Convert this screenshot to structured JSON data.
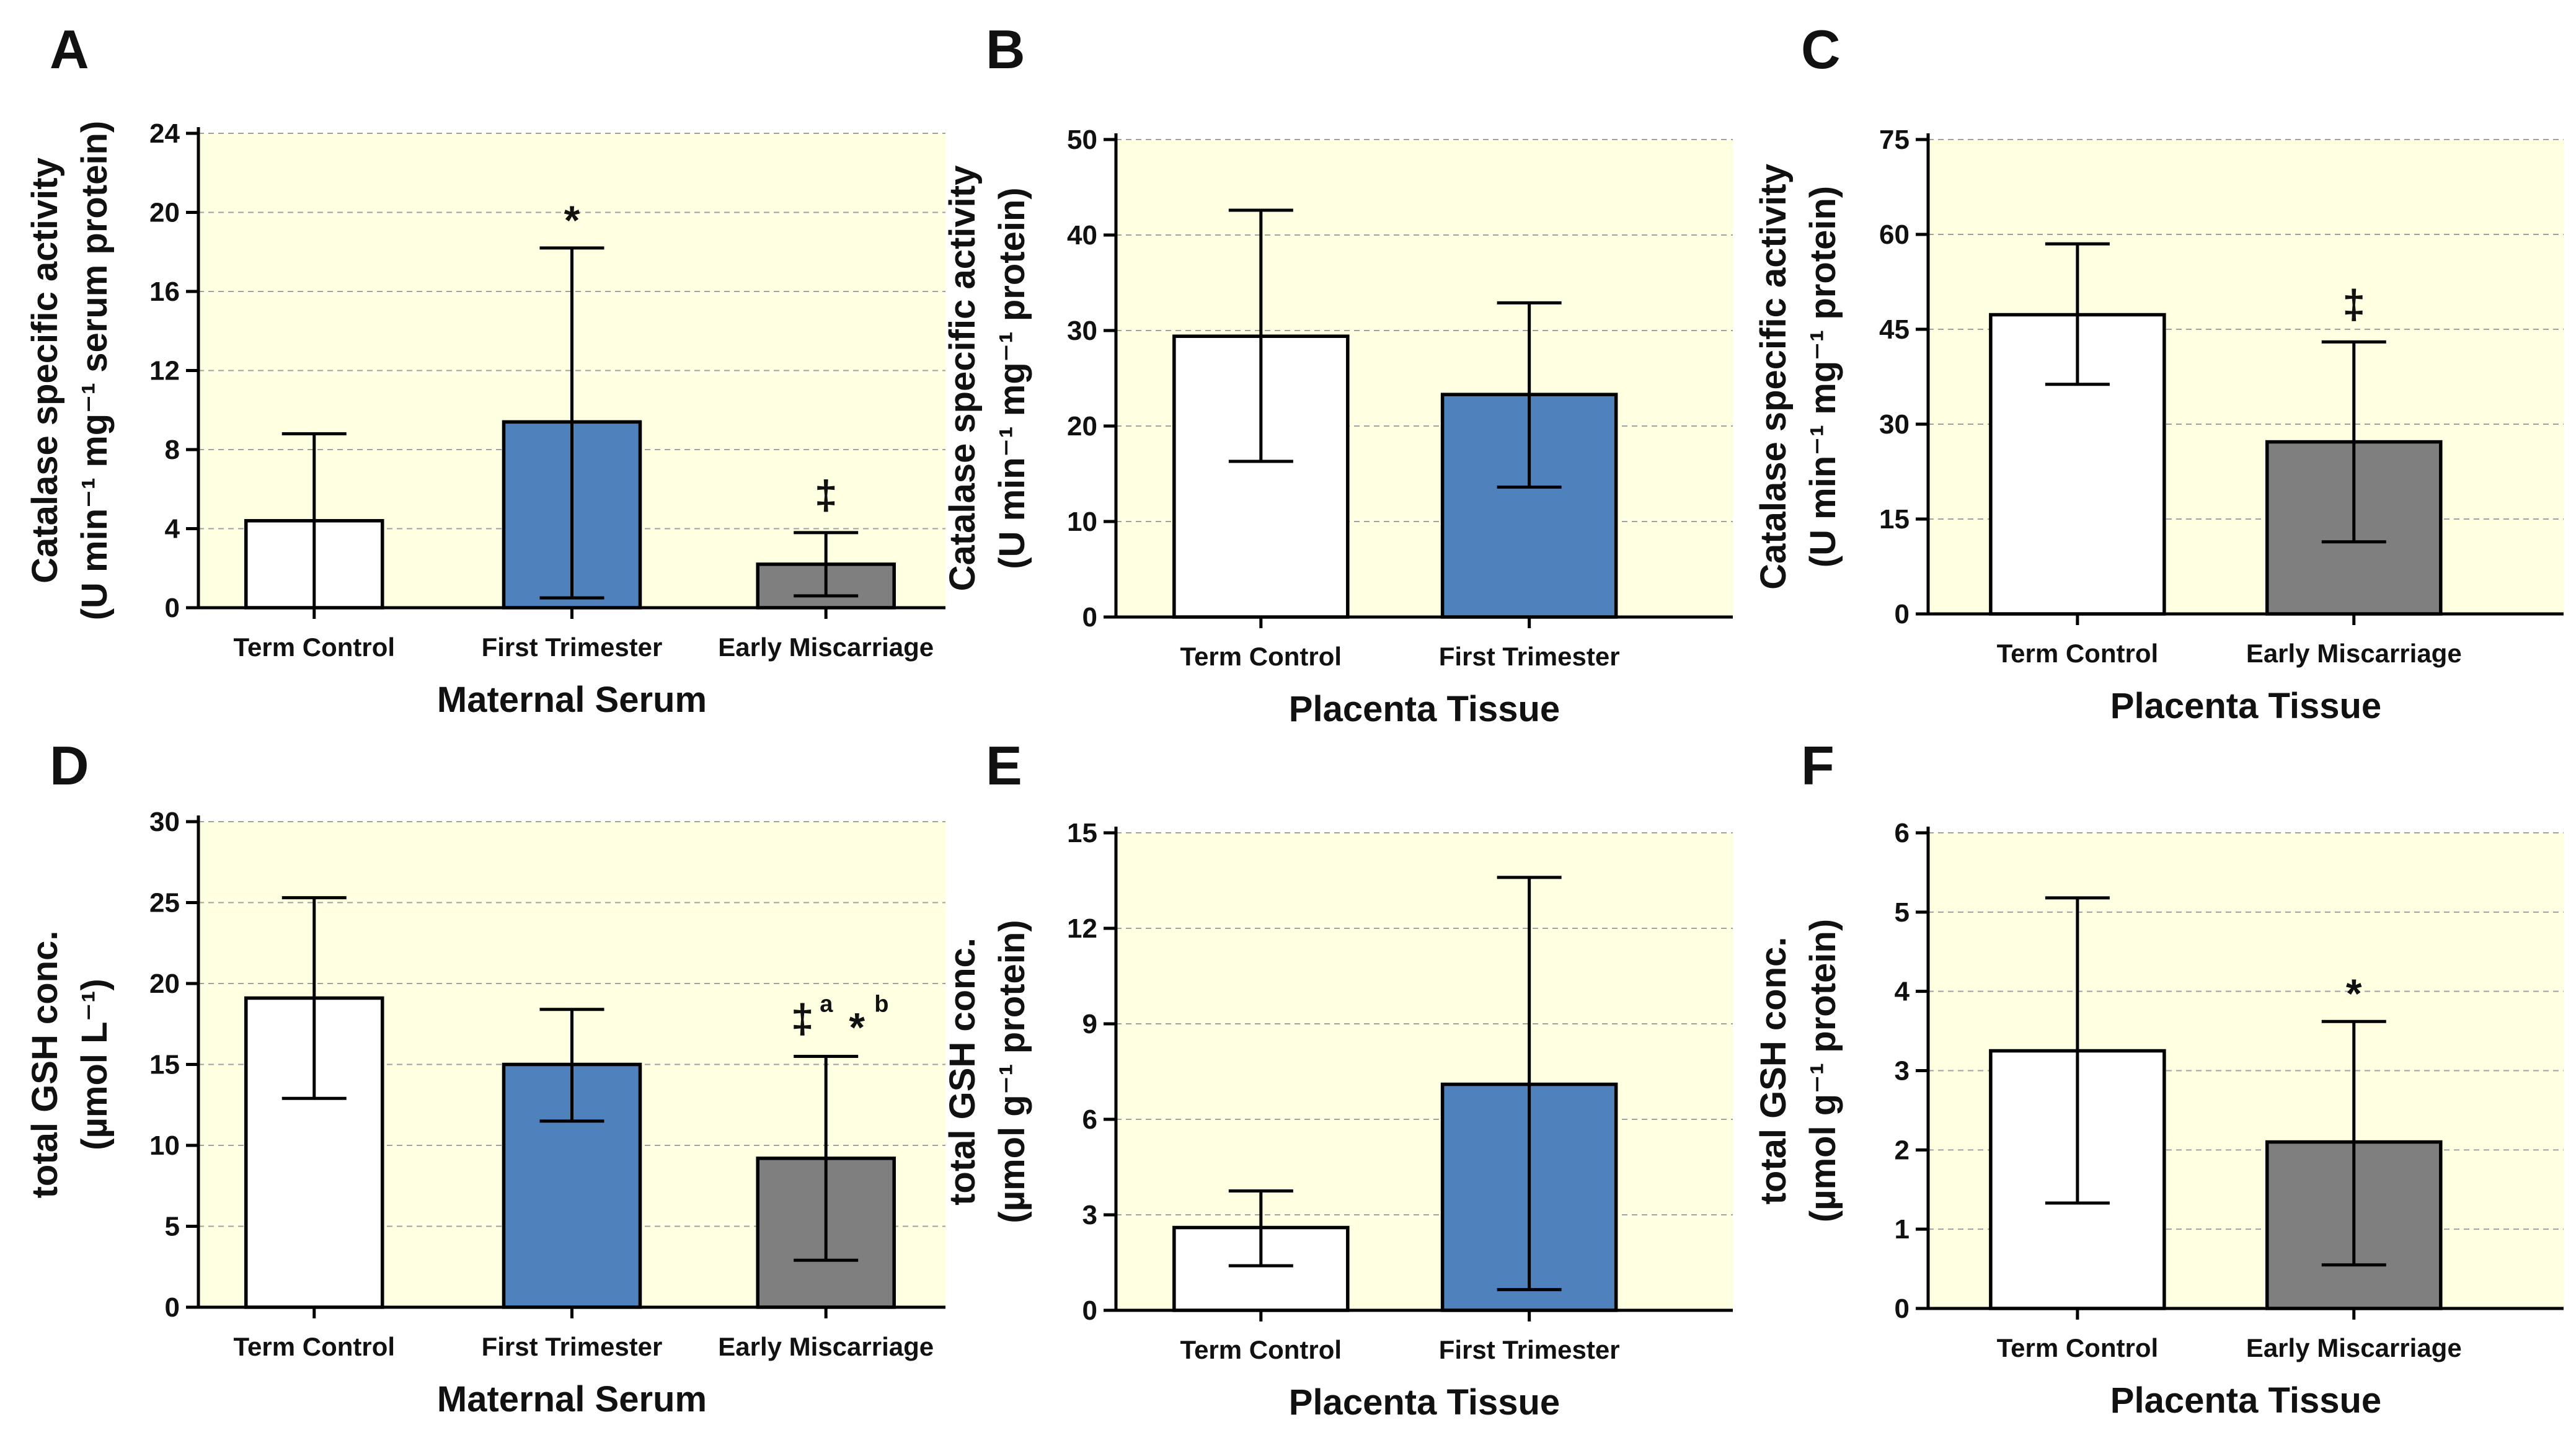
{
  "colors": {
    "plot_background": "#ffffe1",
    "term_control": "#ffffff",
    "first_trimester": "#4f81bd",
    "early_miscarriage": "#7f7f7f"
  },
  "chart_data": [
    {
      "panel": "A",
      "type": "bar",
      "categories": [
        "Term Control",
        "First Trimester",
        "Early Miscarriage"
      ],
      "values": [
        4.4,
        9.4,
        2.2
      ],
      "err_low": [
        0.0,
        0.5,
        0.6
      ],
      "err_high": [
        8.8,
        18.2,
        3.8
      ],
      "bar_colors": [
        "#ffffff",
        "#4f81bd",
        "#7f7f7f"
      ],
      "annotations": [
        {
          "category": "First Trimester",
          "symbol": "*"
        },
        {
          "category": "Early Miscarriage",
          "symbol": "‡"
        }
      ],
      "xlabel": "Maternal Serum",
      "ylabel_lines": [
        "Catalase specific activity",
        "(U min⁻¹ mg⁻¹ serum protein)"
      ],
      "ylim": [
        0,
        24
      ],
      "yticks": [
        0,
        4,
        8,
        12,
        16,
        20,
        24
      ],
      "grid": true
    },
    {
      "panel": "B",
      "type": "bar",
      "categories": [
        "Term Control",
        "First Trimester"
      ],
      "values": [
        29.4,
        23.3
      ],
      "err_low": [
        16.3,
        13.6
      ],
      "err_high": [
        42.6,
        32.9
      ],
      "bar_colors": [
        "#ffffff",
        "#4f81bd"
      ],
      "annotations": [],
      "xlabel": "Placenta Tissue",
      "ylabel_lines": [
        "Catalase specific activity",
        "(U min⁻¹ mg⁻¹ protein)"
      ],
      "ylim": [
        0,
        50
      ],
      "yticks": [
        0,
        10,
        20,
        30,
        40,
        50
      ],
      "grid": true
    },
    {
      "panel": "C",
      "type": "bar",
      "categories": [
        "Term Control",
        "Early Miscarriage"
      ],
      "values": [
        47.3,
        27.2
      ],
      "err_low": [
        36.3,
        11.4
      ],
      "err_high": [
        58.5,
        43.0
      ],
      "bar_colors": [
        "#ffffff",
        "#7f7f7f"
      ],
      "annotations": [
        {
          "category": "Early Miscarriage",
          "symbol": "‡"
        }
      ],
      "xlabel": "Placenta Tissue",
      "ylabel_lines": [
        "Catalase specific activity",
        "(U min⁻¹ mg⁻¹ protein)"
      ],
      "ylim": [
        0,
        75
      ],
      "yticks": [
        0,
        15,
        30,
        45,
        60,
        75
      ],
      "grid": true
    },
    {
      "panel": "D",
      "type": "bar",
      "categories": [
        "Term Control",
        "First Trimester",
        "Early Miscarriage"
      ],
      "values": [
        19.1,
        15.0,
        9.2
      ],
      "err_low": [
        12.9,
        11.5,
        2.9
      ],
      "err_high": [
        25.3,
        18.4,
        15.5
      ],
      "bar_colors": [
        "#ffffff",
        "#4f81bd",
        "#7f7f7f"
      ],
      "annotations": [
        {
          "category": "Early Miscarriage",
          "symbol": "‡",
          "superscript": "a",
          "symbol2": "*",
          "superscript2": "b"
        }
      ],
      "xlabel": "Maternal Serum",
      "ylabel_lines": [
        "total GSH conc.",
        "(µmol L⁻¹)"
      ],
      "ylim": [
        0,
        30
      ],
      "yticks": [
        0,
        5,
        10,
        15,
        20,
        25,
        30
      ],
      "grid": true
    },
    {
      "panel": "E",
      "type": "bar",
      "categories": [
        "Term Control",
        "First Trimester"
      ],
      "values": [
        2.6,
        7.1
      ],
      "err_low": [
        1.4,
        0.65
      ],
      "err_high": [
        3.75,
        13.6
      ],
      "bar_colors": [
        "#ffffff",
        "#4f81bd"
      ],
      "annotations": [],
      "xlabel": "Placenta Tissue",
      "ylabel_lines": [
        "total GSH conc.",
        "(µmol g⁻¹ protein)"
      ],
      "ylim": [
        0,
        15
      ],
      "yticks": [
        0,
        3,
        6,
        9,
        12,
        15
      ],
      "grid": true
    },
    {
      "panel": "F",
      "type": "bar",
      "categories": [
        "Term Control",
        "Early Miscarriage"
      ],
      "values": [
        3.25,
        2.1
      ],
      "err_low": [
        1.33,
        0.55
      ],
      "err_high": [
        5.18,
        3.62
      ],
      "bar_colors": [
        "#ffffff",
        "#7f7f7f"
      ],
      "annotations": [
        {
          "category": "Early Miscarriage",
          "symbol": "*"
        }
      ],
      "xlabel": "Placenta Tissue",
      "ylabel_lines": [
        "total GSH conc.",
        "(µmol g⁻¹ protein)"
      ],
      "ylim": [
        0,
        6
      ],
      "yticks": [
        0,
        1,
        2,
        3,
        4,
        5,
        6
      ],
      "grid": true
    }
  ]
}
